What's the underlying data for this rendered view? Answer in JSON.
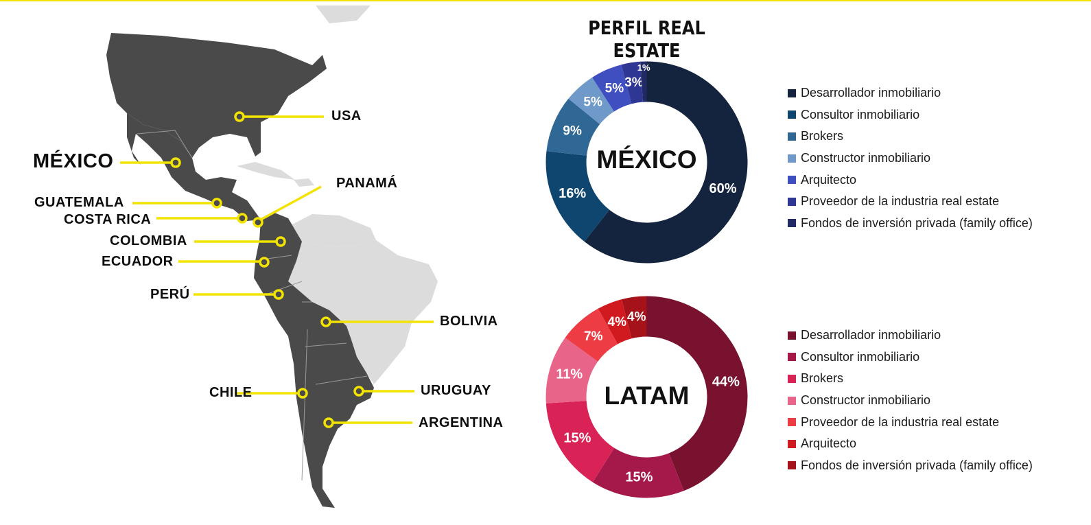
{
  "title": "PERFIL REAL ESTATE",
  "map": {
    "countries": [
      {
        "id": "usa",
        "label": "USA",
        "size": "normal"
      },
      {
        "id": "mexico",
        "label": "MÉXICO",
        "size": "big"
      },
      {
        "id": "guatemala",
        "label": "GUATEMALA",
        "size": "normal"
      },
      {
        "id": "costa-rica",
        "label": "COSTA RICA",
        "size": "normal"
      },
      {
        "id": "panama",
        "label": "PANAMÁ",
        "size": "normal"
      },
      {
        "id": "colombia",
        "label": "COLOMBIA",
        "size": "normal"
      },
      {
        "id": "ecuador",
        "label": "ECUADOR",
        "size": "normal"
      },
      {
        "id": "peru",
        "label": "PERÚ",
        "size": "normal"
      },
      {
        "id": "bolivia",
        "label": "BOLIVIA",
        "size": "normal"
      },
      {
        "id": "chile",
        "label": "CHILE",
        "size": "normal"
      },
      {
        "id": "uruguay",
        "label": "URUGUAY",
        "size": "normal"
      },
      {
        "id": "argentina",
        "label": "ARGENTINA",
        "size": "normal"
      }
    ],
    "colors": {
      "highlighted": "#4a4a4a",
      "other": "#dcdcdc",
      "marker": "#f2e300"
    }
  },
  "chart_data": [
    {
      "type": "pie",
      "variant": "donut",
      "center_label": "MÉXICO",
      "labels": [
        "Desarrollador inmobiliario",
        "Consultor inmobiliario",
        "Brokers",
        "Constructor inmobiliario",
        "Arquitecto",
        "Proveedor de la industria real estate",
        "Fondos de inversión privada (family office)"
      ],
      "slices_clockwise_from_top": [
        {
          "label": "Desarrollador inmobiliario",
          "value": 60,
          "display": "60%",
          "color": "#14243f"
        },
        {
          "label": "Consultor inmobiliario",
          "value": 16,
          "display": "16%",
          "color": "#0e4670"
        },
        {
          "label": "Brokers",
          "value": 9,
          "display": "9%",
          "color": "#2f6894"
        },
        {
          "label": "Constructor inmobiliario",
          "value": 5,
          "display": "5%",
          "color": "#6f99c8"
        },
        {
          "label": "Arquitecto",
          "value": 5,
          "display": "5%",
          "color": "#3f4fc0"
        },
        {
          "label": "Proveedor de la industria real estate",
          "value": 3,
          "display": "3%",
          "color": "#2e3794"
        },
        {
          "label": "Fondos de inversión privada (family office)",
          "value": 1,
          "display": "1%",
          "color": "#222a66"
        }
      ],
      "legend_position": "right"
    },
    {
      "type": "pie",
      "variant": "donut",
      "center_label": "LATAM",
      "labels": [
        "Desarrollador inmobiliario",
        "Consultor inmobiliario",
        "Brokers",
        "Constructor inmobiliario",
        "Proveedor de la industria real estate",
        "Arquitecto",
        "Fondos de inversión privada (family office)"
      ],
      "slices_clockwise_from_top": [
        {
          "label": "Desarrollador inmobiliario",
          "value": 44,
          "display": "44%",
          "color": "#79122f"
        },
        {
          "label": "Consultor inmobiliario",
          "value": 15,
          "display": "15%",
          "color": "#a5194a"
        },
        {
          "label": "Brokers",
          "value": 15,
          "display": "15%",
          "color": "#d92256"
        },
        {
          "label": "Constructor inmobiliario",
          "value": 11,
          "display": "11%",
          "color": "#e86488"
        },
        {
          "label": "Proveedor de la industria real estate",
          "value": 7,
          "display": "7%",
          "color": "#ee3c45"
        },
        {
          "label": "Arquitecto",
          "value": 4,
          "display": "4%",
          "color": "#d11a1f"
        },
        {
          "label": "Fondos de inversión privada (family office)",
          "value": 4,
          "display": "4%",
          "color": "#a5121a"
        }
      ],
      "legend_position": "right"
    }
  ]
}
